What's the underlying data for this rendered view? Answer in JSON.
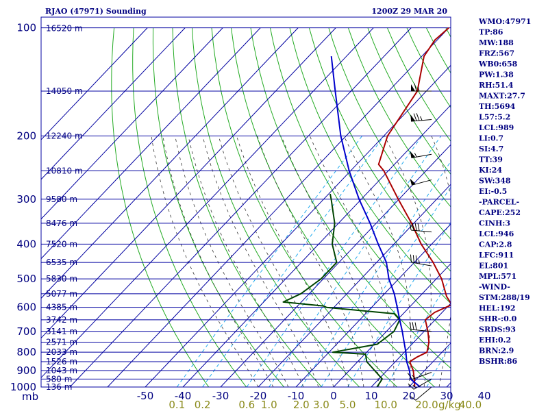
{
  "header": {
    "station": "RJAO (47971) Sounding",
    "time": "1200Z 29 MAR 20"
  },
  "colors": {
    "isobar": "#0000a0",
    "dry_adiabat": "#22aa22",
    "moist_adiabat": "#333333",
    "mixing_ratio": "#22aaee",
    "temperature": "#aa0000",
    "dewpoint": "#004400",
    "parcel": "#0000cc",
    "text": "#000080",
    "wind": "#000000"
  },
  "axis": {
    "mb_label": "mb",
    "gkg_label": "g/kg",
    "temp_ticks": [
      {
        "label": "-50",
        "value": -50
      },
      {
        "label": "-40",
        "value": -40
      },
      {
        "label": "-30",
        "value": -30
      },
      {
        "label": "-20",
        "value": -20
      },
      {
        "label": "-10",
        "value": -10
      },
      {
        "label": "0",
        "value": 0
      },
      {
        "label": "10",
        "value": 10
      },
      {
        "label": "20",
        "value": 20
      },
      {
        "label": "30",
        "value": 30
      },
      {
        "label": "40",
        "value": 40
      }
    ],
    "mixing_ticks": [
      {
        "label": "0.1",
        "value": 0.1
      },
      {
        "label": "0.2",
        "value": 0.2
      },
      {
        "label": "0.6",
        "value": 0.6
      },
      {
        "label": "1.0",
        "value": 1.0
      },
      {
        "label": "2.0",
        "value": 2.0
      },
      {
        "label": "3.0",
        "value": 3.0
      },
      {
        "label": "5.0",
        "value": 5.0
      },
      {
        "label": "10.0",
        "value": 10.0
      },
      {
        "label": "20.0",
        "value": 20.0
      },
      {
        "label": "40.0",
        "value": 40.0
      }
    ],
    "pressure_labels": [
      {
        "label": "100",
        "p": 100
      },
      {
        "label": "200",
        "p": 200
      },
      {
        "label": "300",
        "p": 300
      },
      {
        "label": "400",
        "p": 400
      },
      {
        "label": "500",
        "p": 500
      },
      {
        "label": "600",
        "p": 600
      },
      {
        "label": "700",
        "p": 700
      },
      {
        "label": "800",
        "p": 800
      },
      {
        "label": "900",
        "p": 900
      },
      {
        "label": "1000",
        "p": 1000
      }
    ],
    "height_labels": [
      {
        "label": "16520 m",
        "p": 100
      },
      {
        "label": "14050 m",
        "p": 150
      },
      {
        "label": "12240 m",
        "p": 200
      },
      {
        "label": "10810 m",
        "p": 250
      },
      {
        "label": "9580 m",
        "p": 300
      },
      {
        "label": "8476 m",
        "p": 350
      },
      {
        "label": "7520 m",
        "p": 400
      },
      {
        "label": "6535 m",
        "p": 450
      },
      {
        "label": "5830 m",
        "p": 500
      },
      {
        "label": "5077 m",
        "p": 550
      },
      {
        "label": "4385 m",
        "p": 600
      },
      {
        "label": "3742 m",
        "p": 650
      },
      {
        "label": "3141 m",
        "p": 700
      },
      {
        "label": "2571 m",
        "p": 750
      },
      {
        "label": "2033 m",
        "p": 800
      },
      {
        "label": "1526 m",
        "p": 850
      },
      {
        "label": "1043 m",
        "p": 900
      },
      {
        "label": "580 m",
        "p": 950
      },
      {
        "label": "136 m",
        "p": 1000
      }
    ]
  },
  "chart_data": {
    "type": "line",
    "title": "RJAO (47971) Sounding",
    "subtitle": "1200Z 29 MAR 20",
    "xlabel": "",
    "ylabel": "mb",
    "xlim": [
      -50,
      50
    ],
    "ylim": [
      1000,
      100
    ],
    "y_scale": "log",
    "x_skewed": true,
    "grid": true,
    "series": [
      {
        "key": "temperature",
        "points": [
          {
            "p": 1000,
            "t": 21.5
          },
          {
            "p": 975,
            "t": 20.5
          },
          {
            "p": 950,
            "t": 19.4
          },
          {
            "p": 900,
            "t": 17.0
          },
          {
            "p": 850,
            "t": 13.8
          },
          {
            "p": 825,
            "t": 14.6
          },
          {
            "p": 800,
            "t": 16.0
          },
          {
            "p": 750,
            "t": 14.0
          },
          {
            "p": 700,
            "t": 11.0
          },
          {
            "p": 650,
            "t": 7.4
          },
          {
            "p": 620,
            "t": 8.0
          },
          {
            "p": 590,
            "t": 10.6
          },
          {
            "p": 560,
            "t": 7.2
          },
          {
            "p": 500,
            "t": 1.4
          },
          {
            "p": 450,
            "t": -5.0
          },
          {
            "p": 400,
            "t": -12.8
          },
          {
            "p": 350,
            "t": -20.6
          },
          {
            "p": 300,
            "t": -30.2
          },
          {
            "p": 250,
            "t": -41.2
          },
          {
            "p": 240,
            "t": -44.2
          },
          {
            "p": 200,
            "t": -49.0
          },
          {
            "p": 150,
            "t": -52.4
          },
          {
            "p": 120,
            "t": -59.4
          },
          {
            "p": 108,
            "t": -60.6
          },
          {
            "p": 100,
            "t": -60.0
          }
        ]
      },
      {
        "key": "dewpoint",
        "points": [
          {
            "p": 1000,
            "t": 11.5
          },
          {
            "p": 950,
            "t": 10.9
          },
          {
            "p": 850,
            "t": 2.4
          },
          {
            "p": 810,
            "t": 0.2
          },
          {
            "p": 800,
            "t": -9.0
          },
          {
            "p": 760,
            "t": 0.8
          },
          {
            "p": 700,
            "t": 2.0
          },
          {
            "p": 650,
            "t": 0.6
          },
          {
            "p": 625,
            "t": -2.4
          },
          {
            "p": 600,
            "t": -22.0
          },
          {
            "p": 595,
            "t": -23.0
          },
          {
            "p": 580,
            "t": -34.8
          },
          {
            "p": 550,
            "t": -32.2
          },
          {
            "p": 500,
            "t": -30.6
          },
          {
            "p": 450,
            "t": -30.6
          },
          {
            "p": 400,
            "t": -36.4
          },
          {
            "p": 350,
            "t": -41.0
          },
          {
            "p": 300,
            "t": -48.0
          },
          {
            "p": 290,
            "t": -49.6
          }
        ]
      },
      {
        "key": "parcel",
        "points": [
          {
            "p": 1000,
            "t": 23.0
          },
          {
            "p": 950,
            "t": 18.4
          },
          {
            "p": 900,
            "t": 16.0
          },
          {
            "p": 850,
            "t": 13.0
          },
          {
            "p": 800,
            "t": 10.4
          },
          {
            "p": 750,
            "t": 7.4
          },
          {
            "p": 700,
            "t": 4.2
          },
          {
            "p": 650,
            "t": 0.6
          },
          {
            "p": 600,
            "t": -3.2
          },
          {
            "p": 550,
            "t": -7.4
          },
          {
            "p": 500,
            "t": -12.6
          },
          {
            "p": 450,
            "t": -17.4
          },
          {
            "p": 400,
            "t": -24.2
          },
          {
            "p": 350,
            "t": -31.6
          },
          {
            "p": 300,
            "t": -40.6
          },
          {
            "p": 250,
            "t": -50.4
          },
          {
            "p": 200,
            "t": -61.4
          },
          {
            "p": 150,
            "t": -74.2
          },
          {
            "p": 120,
            "t": -84.0
          }
        ]
      }
    ],
    "wind_barbs": [
      {
        "p": 150,
        "dir": 270,
        "speed": 65
      },
      {
        "p": 180,
        "dir": 265,
        "speed": 75
      },
      {
        "p": 225,
        "dir": 260,
        "speed": 55
      },
      {
        "p": 265,
        "dir": 255,
        "speed": 50
      },
      {
        "p": 370,
        "dir": 275,
        "speed": 40
      },
      {
        "p": 460,
        "dir": 280,
        "speed": 35
      },
      {
        "p": 700,
        "dir": 275,
        "speed": 30
      },
      {
        "p": 910,
        "dir": 250,
        "speed": 15
      },
      {
        "p": 950,
        "dir": 240,
        "speed": 15
      },
      {
        "p": 1000,
        "dir": 230,
        "speed": 10
      }
    ]
  },
  "stats": [
    "WMO:47971",
    "TP:86",
    "MW:188",
    "FRZ:567",
    "WB0:658",
    "PW:1.38",
    "RH:51.4",
    "MAXT:27.7",
    "TH:5694",
    "L57:5.2",
    "LCL:989",
    "LI:0.7",
    "SI:4.7",
    "TT:39",
    "KI:24",
    "SW:348",
    "EI:-0.5",
    "-PARCEL-",
    "CAPE:252",
    "CINH:3",
    "LCL:946",
    "CAP:2.8",
    "LFC:911",
    "EL:801",
    "MPL:571",
    "-WIND-",
    "STM:288/19",
    "HEL:192",
    "SHR-:0.0",
    "SRDS:93",
    "EHI:0.2",
    "BRN:2.9",
    "BSHR:86"
  ]
}
